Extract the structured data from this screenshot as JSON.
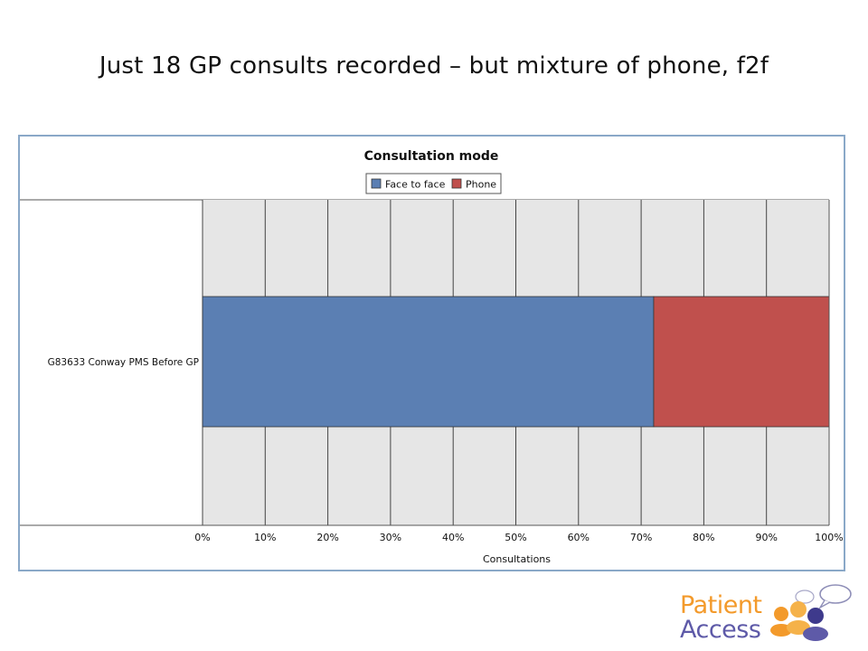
{
  "slide": {
    "title": "Just 18 GP consults recorded – but mixture of phone, f2f"
  },
  "chart_data": {
    "type": "bar",
    "orientation": "horizontal",
    "stacked": true,
    "title": "Consultation mode",
    "xlabel": "Consultations",
    "ylabel": "",
    "categories": [
      "G83633 Conway PMS   Before   GP"
    ],
    "series": [
      {
        "name": "Face to face",
        "values": [
          72
        ],
        "color": "#5b7fb3"
      },
      {
        "name": "Phone",
        "values": [
          28
        ],
        "color": "#c0504d"
      }
    ],
    "xlim": [
      0,
      100
    ],
    "x_ticks": [
      "0%",
      "10%",
      "20%",
      "30%",
      "40%",
      "50%",
      "60%",
      "70%",
      "80%",
      "90%",
      "100%"
    ],
    "grid": true,
    "legend": "top-center"
  },
  "logo": {
    "line1": "Patient",
    "line2": "Access"
  },
  "colors": {
    "plot_background": "#e6e6e6",
    "frame_border": "#8aa8c8"
  }
}
